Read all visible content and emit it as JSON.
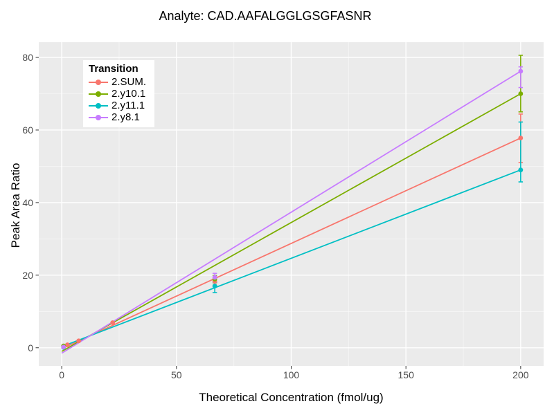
{
  "chart_data": {
    "type": "line",
    "title": "Analyte: CAD.AAFALGGLGSGFASNR",
    "xlabel": "Theoretical Concentration (fmol/ug)",
    "ylabel": "Peak Area Ratio",
    "legend_title": "Transition",
    "legend_position": "top-left-inside",
    "panel_bg": "#EBEBEB",
    "grid_major_color": "#FFFFFF",
    "grid_minor_color": "#FFFFFF",
    "tick_color": "#333333",
    "tick_label_color": "#4D4D4D",
    "xlim": [
      -10,
      210
    ],
    "ylim": [
      -5,
      84.2
    ],
    "x_ticks": [
      0,
      50,
      100,
      150,
      200
    ],
    "y_ticks": [
      0,
      20,
      40,
      60,
      80
    ],
    "x_minor": [
      25,
      75,
      125,
      175
    ],
    "y_minor": [
      10,
      30,
      50,
      70
    ],
    "series": [
      {
        "name": "2.SUM.",
        "color": "#F8766D",
        "line": [
          [
            0,
            -0.3
          ],
          [
            200,
            57.8
          ]
        ],
        "points": [
          [
            0.8,
            0.3
          ],
          [
            2.5,
            0.8
          ],
          [
            7.4,
            1.9
          ],
          [
            22.2,
            6.9
          ],
          [
            66.7,
            18.3
          ],
          [
            200,
            57.8
          ]
        ],
        "errorbars": [
          {
            "x": 66.7,
            "lo": 17.2,
            "hi": 19.4
          },
          {
            "x": 200,
            "lo": 51.0,
            "hi": 64.4
          }
        ]
      },
      {
        "name": "2.y10.1",
        "color": "#7CAE00",
        "line": [
          [
            0,
            -1.0
          ],
          [
            200,
            70.0
          ]
        ],
        "points": [
          [
            0.8,
            0.5
          ],
          [
            66.7,
            18.9
          ],
          [
            200,
            70.0
          ]
        ],
        "errorbars": [
          {
            "x": 66.7,
            "lo": 17.9,
            "hi": 19.9
          },
          {
            "x": 200,
            "lo": 65.0,
            "hi": 80.6
          }
        ]
      },
      {
        "name": "2.y11.1",
        "color": "#00BFC4",
        "line": [
          [
            0,
            0.3
          ],
          [
            200,
            49.0
          ]
        ],
        "points": [
          [
            0.8,
            0.1
          ],
          [
            66.7,
            17.0
          ],
          [
            200,
            49.0
          ]
        ],
        "errorbars": [
          {
            "x": 66.7,
            "lo": 15.2,
            "hi": 18.0
          },
          {
            "x": 200,
            "lo": 45.7,
            "hi": 62.2
          }
        ]
      },
      {
        "name": "2.y8.1",
        "color": "#C77CFF",
        "line": [
          [
            0,
            -1.5
          ],
          [
            200,
            76.2
          ]
        ],
        "points": [
          [
            0.8,
            0.2
          ],
          [
            66.7,
            19.4
          ],
          [
            200,
            76.2
          ]
        ],
        "errorbars": [
          {
            "x": 66.7,
            "lo": 18.4,
            "hi": 20.5
          },
          {
            "x": 200,
            "lo": 71.7,
            "hi": 77.4
          }
        ]
      }
    ]
  }
}
